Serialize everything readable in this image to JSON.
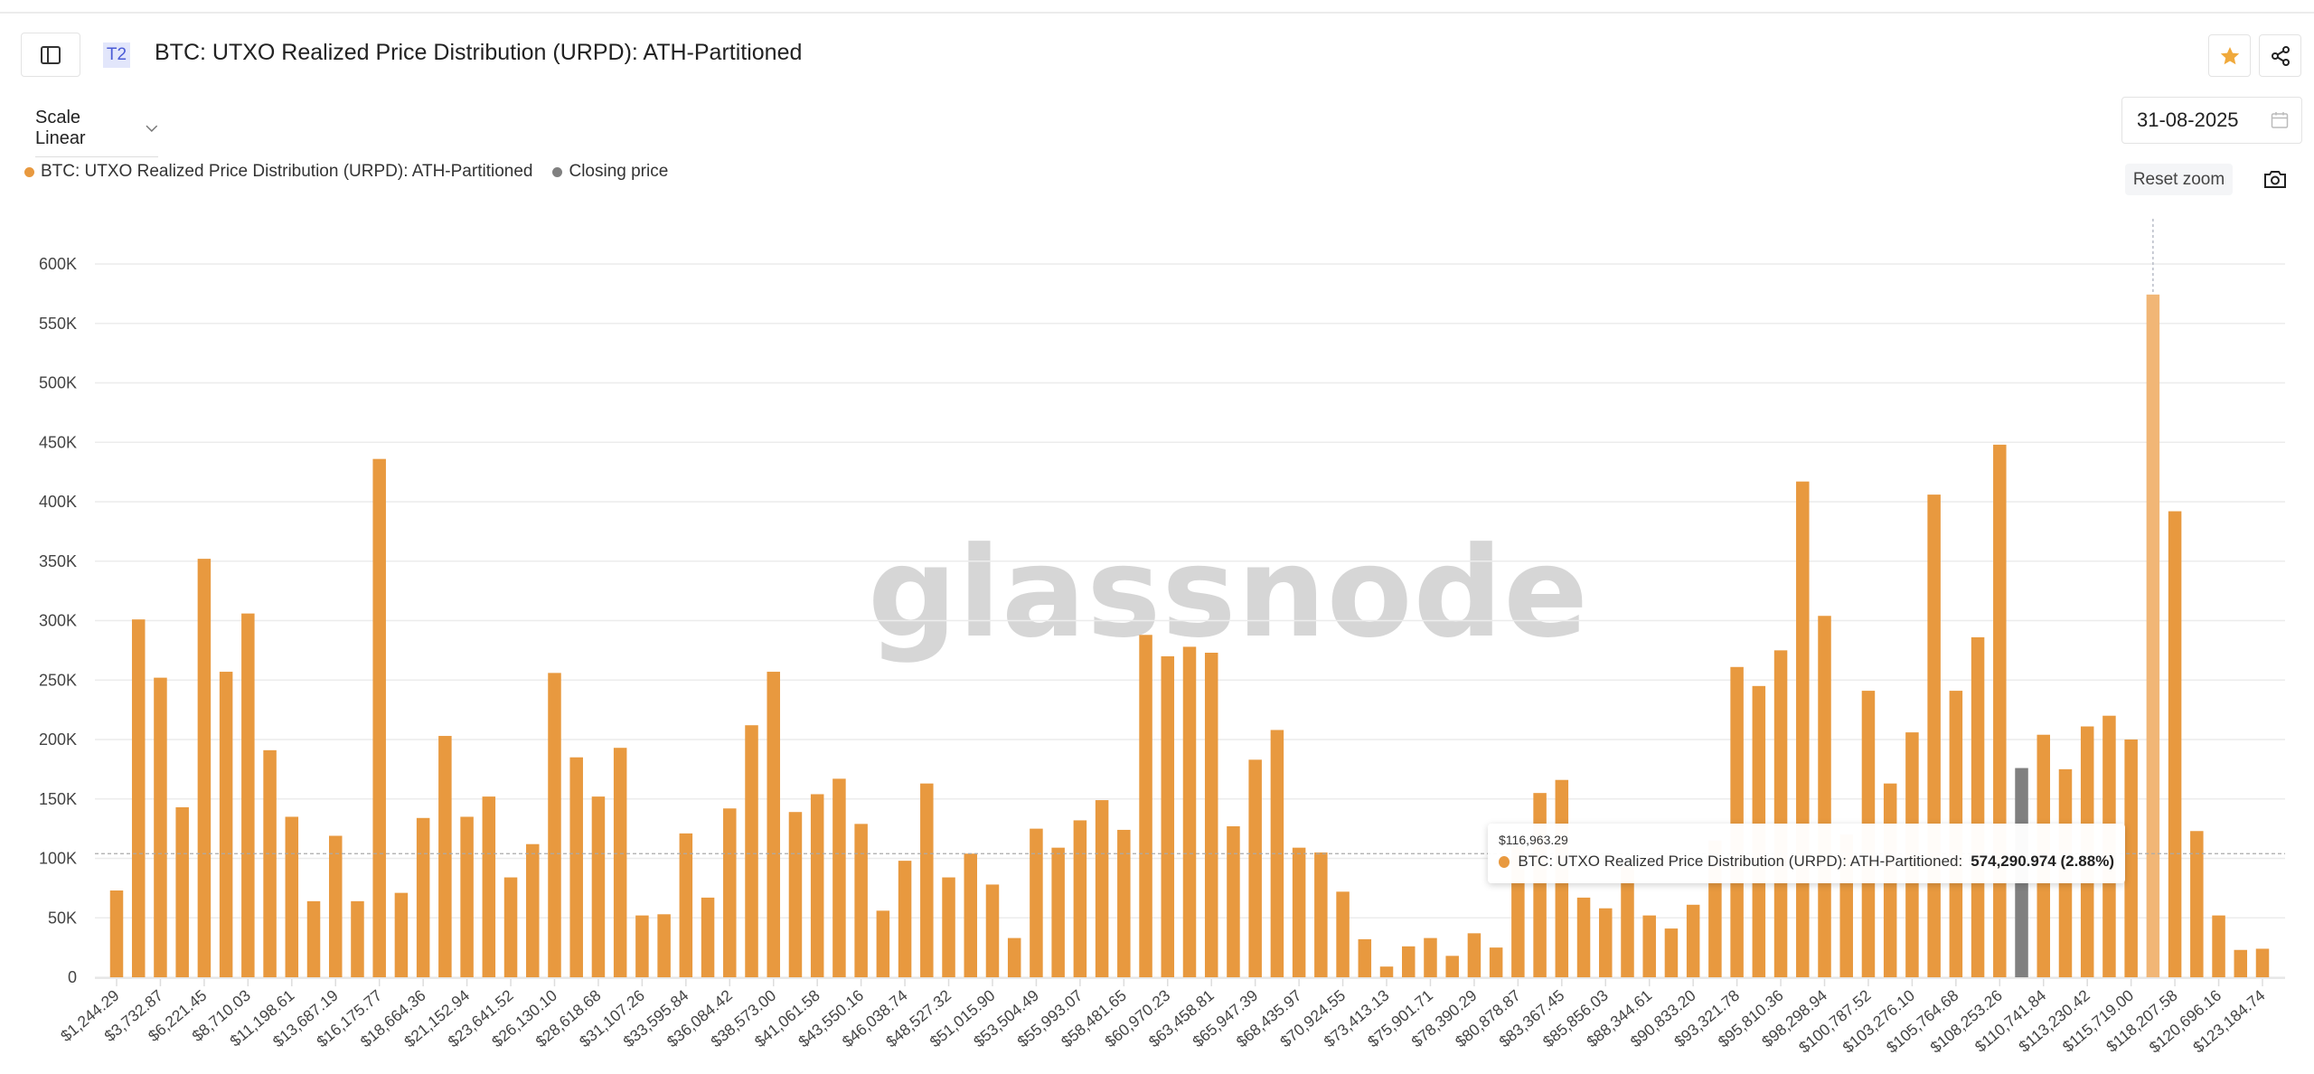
{
  "header": {
    "badge": "T2",
    "title": "BTC: UTXO Realized Price Distribution (URPD): ATH-Partitioned"
  },
  "controls": {
    "scale_label": "Scale Linear",
    "date": "31-08-2025",
    "reset_zoom": "Reset zoom"
  },
  "legend": [
    {
      "label": "BTC: UTXO Realized Price Distribution (URPD): ATH-Partitioned",
      "color": "#E8993F"
    },
    {
      "label": "Closing price",
      "color": "#808080"
    }
  ],
  "watermark": "glassnode",
  "tooltip": {
    "price": "$116,963.29",
    "series": "BTC: UTXO Realized Price Distribution (URPD): ATH-Partitioned:",
    "value": "574,290.974 (2.88%)"
  },
  "chart_data": {
    "type": "bar",
    "title": "BTC: UTXO Realized Price Distribution (URPD): ATH-Partitioned",
    "xlabel": "",
    "ylabel": "",
    "bin_width": 1244.29,
    "ylim": [
      0,
      600000
    ],
    "yticks": [
      "0",
      "50K",
      "100K",
      "150K",
      "200K",
      "250K",
      "300K",
      "350K",
      "400K",
      "450K",
      "500K",
      "550K",
      "600K"
    ],
    "xtick_labels": [
      "$1,244.29",
      "$3,732.87",
      "$6,221.45",
      "$8,710.03",
      "$11,198.61",
      "$13,687.19",
      "$16,175.77",
      "$18,664.36",
      "$21,152.94",
      "$23,641.52",
      "$26,130.10",
      "$28,618.68",
      "$31,107.26",
      "$33,595.84",
      "$36,084.42",
      "$38,573.00",
      "$41,061.58",
      "$43,550.16",
      "$46,038.74",
      "$48,527.32",
      "$51,015.90",
      "$53,504.49",
      "$55,993.07",
      "$58,481.65",
      "$60,970.23",
      "$63,458.81",
      "$65,947.39",
      "$68,435.97",
      "$70,924.55",
      "$73,413.13",
      "$75,901.71",
      "$78,390.29",
      "$80,878.87",
      "$83,367.45",
      "$85,856.03",
      "$88,344.61",
      "$90,833.20",
      "$93,321.78",
      "$95,810.36",
      "$98,298.94",
      "$100,787.52",
      "$103,276.10",
      "$105,764.68",
      "$108,253.26",
      "$110,741.84",
      "$113,230.42",
      "$115,719.00",
      "$118,207.58",
      "$120,696.16",
      "$123,184.74"
    ],
    "values": [
      73000,
      301000,
      252000,
      143000,
      352000,
      257000,
      306000,
      191000,
      135000,
      64000,
      119000,
      64000,
      436000,
      71000,
      134000,
      203000,
      135000,
      152000,
      84000,
      112000,
      256000,
      185000,
      152000,
      193000,
      52000,
      53000,
      121000,
      67000,
      142000,
      212000,
      257000,
      139000,
      154000,
      167000,
      129000,
      56000,
      98000,
      163000,
      84000,
      104000,
      78000,
      33000,
      125000,
      109000,
      132000,
      149000,
      124000,
      288000,
      270000,
      278000,
      273000,
      127000,
      183000,
      208000,
      109000,
      105000,
      72000,
      32000,
      9000,
      26000,
      33000,
      18000,
      37000,
      25000,
      110000,
      155000,
      166000,
      67000,
      58000,
      95000,
      52000,
      41000,
      61000,
      115000,
      261000,
      245000,
      275000,
      417000,
      304000,
      120000,
      241000,
      163000,
      206000,
      406000,
      241000,
      286000,
      448000,
      176000,
      204000,
      175000,
      211000,
      220000,
      200000,
      574290.974,
      392000,
      123000,
      52000,
      23000,
      24000
    ],
    "closing_price_bin_index": 87,
    "highlighted_bin_index": 93,
    "crosshair_value": 104000,
    "colors": {
      "bar": "#E8993F",
      "closing": "#808080",
      "highlight": "#F1B676"
    },
    "grid": true,
    "legend_position": "top-left"
  }
}
